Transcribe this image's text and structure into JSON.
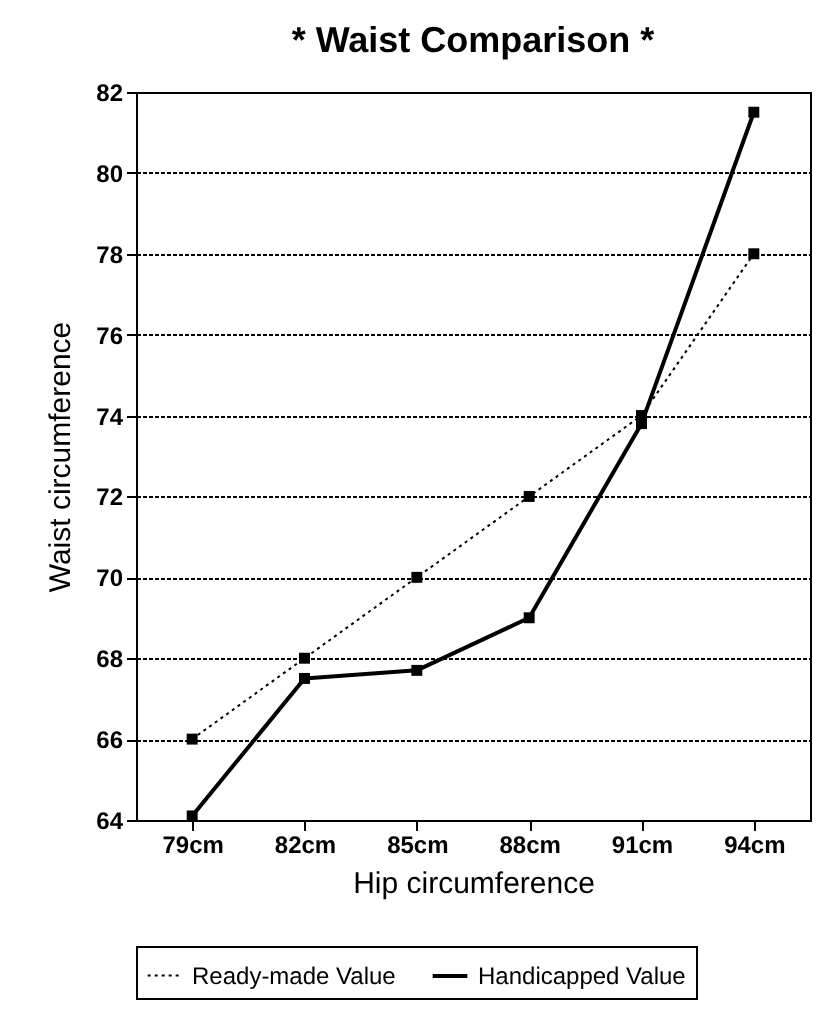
{
  "chart_data": {
    "type": "line",
    "title": "* Waist Comparison *",
    "xlabel": "Hip circumference",
    "ylabel": "Waist circumference",
    "categories": [
      "79cm",
      "82cm",
      "85cm",
      "88cm",
      "91cm",
      "94cm"
    ],
    "series": [
      {
        "name": "Ready-made Value",
        "color": "#000000",
        "line_style": "dotted",
        "values": [
          66,
          68,
          70,
          72,
          74,
          78
        ]
      },
      {
        "name": "Handicapped Value",
        "color": "#000000",
        "line_style": "solid",
        "values": [
          64.1,
          67.5,
          67.7,
          69,
          73.8,
          81.5
        ]
      }
    ],
    "ylim": [
      64,
      82
    ],
    "yticks": [
      64,
      66,
      68,
      70,
      72,
      74,
      76,
      78,
      80,
      82
    ],
    "grid": "y",
    "legend": "bottom",
    "marker": "square"
  }
}
